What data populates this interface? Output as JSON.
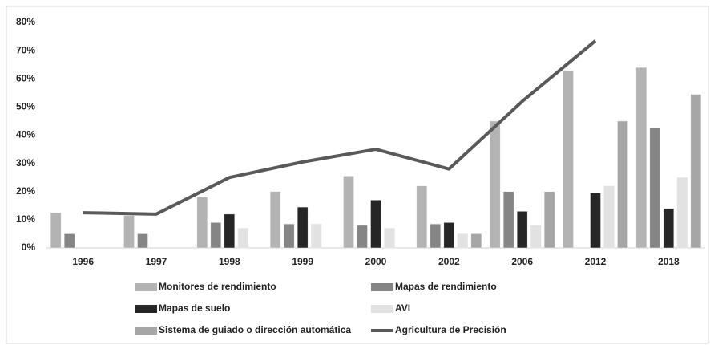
{
  "chart_data": {
    "type": "bar",
    "categories": [
      "1996",
      "1997",
      "1998",
      "1999",
      "2000",
      "2002",
      "2006",
      "2012",
      "2018"
    ],
    "series": [
      {
        "name": "Monitores de rendimiento",
        "color": "#b3b3b3",
        "values": [
          12.5,
          11.5,
          18,
          20,
          25.5,
          22,
          45,
          63,
          64
        ]
      },
      {
        "name": "Mapas de rendimiento",
        "color": "#858585",
        "values": [
          5,
          5,
          9,
          8.5,
          8,
          8.5,
          20,
          null,
          42.5
        ]
      },
      {
        "name": "Mapas de suelo",
        "color": "#262626",
        "values": [
          null,
          null,
          12,
          14.5,
          17,
          9,
          13,
          19.5,
          14
        ]
      },
      {
        "name": "AVI",
        "color": "#e2e2e2",
        "values": [
          null,
          null,
          7,
          8.5,
          7,
          5,
          8,
          22,
          25
        ]
      },
      {
        "name": "Sistema de guiado o dirección automática",
        "color": "#a6a6a6",
        "values": [
          null,
          null,
          null,
          null,
          null,
          5,
          20,
          45,
          54.5
        ]
      },
      {
        "name": "Agricultura de Precisión",
        "color": "#595959",
        "type": "line",
        "values": [
          12.5,
          12,
          25,
          30.5,
          35,
          28,
          52,
          73.5,
          null
        ]
      }
    ],
    "ylim": [
      0,
      80
    ],
    "yticks": [
      {
        "value": 0,
        "label": "0%"
      },
      {
        "value": 10,
        "label": "10%"
      },
      {
        "value": 20,
        "label": "20%"
      },
      {
        "value": 30,
        "label": "30%"
      },
      {
        "value": 40,
        "label": "40%"
      },
      {
        "value": 50,
        "label": "50%"
      },
      {
        "value": 60,
        "label": "60%"
      },
      {
        "value": 70,
        "label": "70%"
      },
      {
        "value": 80,
        "label": "80%"
      }
    ],
    "grid": false,
    "legend": "bottom"
  }
}
